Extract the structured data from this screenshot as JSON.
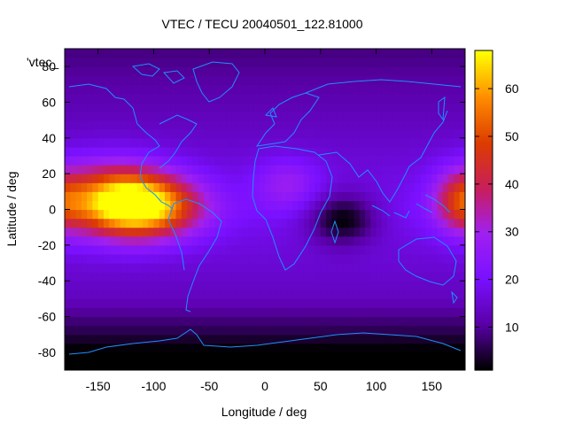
{
  "chart_data": {
    "type": "heatmap",
    "title": "VTEC / TECU 20040501_122.81000",
    "xlabel": "Longitude / deg",
    "ylabel": "Latitude / deg",
    "overlay_label": "'vtec_",
    "xlim": [
      -180,
      180
    ],
    "ylim": [
      -90,
      90
    ],
    "xticks": [
      -150,
      -100,
      -50,
      0,
      50,
      100,
      150
    ],
    "yticks": [
      -80,
      -60,
      -40,
      -20,
      0,
      20,
      40,
      60,
      80
    ],
    "colorbar": {
      "range": [
        1,
        68
      ],
      "ticks": [
        10,
        20,
        30,
        40,
        50,
        60
      ],
      "palette": [
        "#000000",
        "#5a00a8",
        "#7a10ff",
        "#a020f0",
        "#c81e5a",
        "#dc3c00",
        "#ff8c00",
        "#ffff00"
      ]
    },
    "features": [
      {
        "lon": -110,
        "lat": 2,
        "value": 66,
        "lon_sigma": 35,
        "lat_sigma": 12,
        "note": "peak"
      },
      {
        "lon": -140,
        "lat": 8,
        "value": 44,
        "lon_sigma": 35,
        "lat_sigma": 14
      },
      {
        "lon": 175,
        "lat": 5,
        "value": 38,
        "lon_sigma": 16,
        "lat_sigma": 12
      },
      {
        "lon": 20,
        "lat": 15,
        "value": 30,
        "lon_sigma": 20,
        "lat_sigma": 10
      },
      {
        "lon": 70,
        "lat": -5,
        "value": 2,
        "lon_sigma": 22,
        "lat_sigma": 10,
        "note": "minimum"
      }
    ],
    "background_value": 19,
    "grid": false,
    "legend": "colorbar-right"
  }
}
